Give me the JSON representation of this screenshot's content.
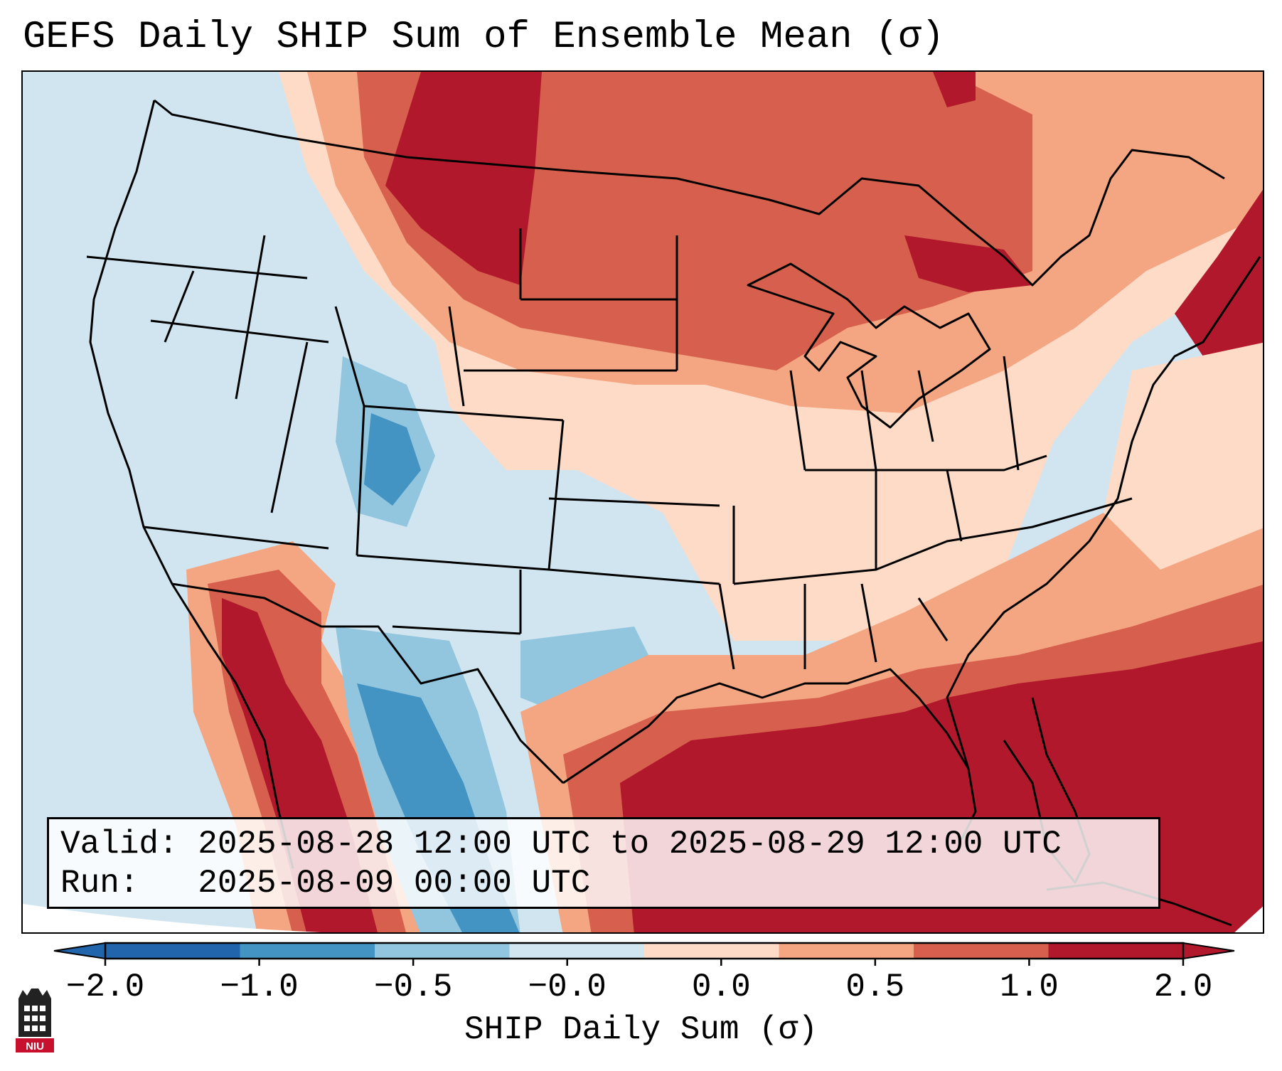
{
  "title": "GEFS Daily SHIP Sum of Ensemble Mean (σ)",
  "info": {
    "valid": "Valid: 2025-08-28 12:00 UTC to 2025-08-29 12:00 UTC",
    "run": "Run:   2025-08-09 00:00 UTC"
  },
  "colorbar": {
    "label": "SHIP Daily Sum (σ)",
    "ticks": [
      "−2.0",
      "−1.0",
      "−0.5",
      "−0.0",
      "0.0",
      "0.5",
      "1.0",
      "2.0"
    ],
    "colors": [
      "#2166ac",
      "#4393c3",
      "#92c5de",
      "#d1e5f0",
      "#fddbc7",
      "#f4a582",
      "#d6604d",
      "#b2182b"
    ]
  },
  "logo": {
    "text": "NIU"
  },
  "map": {
    "projection": "Lambert Conformal",
    "region": "Contiguous United States",
    "field": "SHIP daily sum standardized anomaly"
  }
}
